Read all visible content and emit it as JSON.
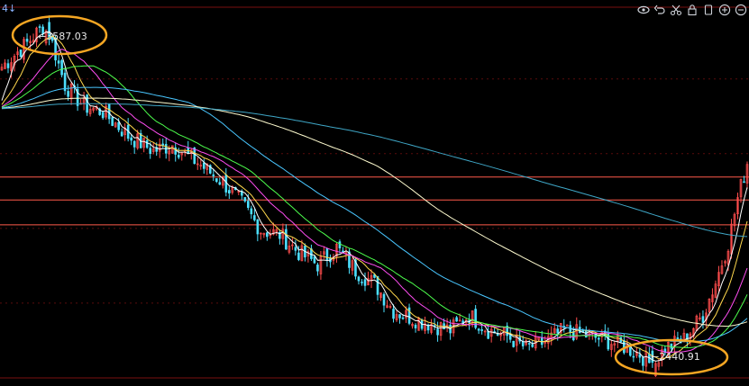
{
  "corner": {
    "text": "4↓"
  },
  "toolbar": {
    "icons": [
      "eye-icon",
      "undo-icon",
      "scissors-icon",
      "lock-icon",
      "copy-icon",
      "zoom-in-icon",
      "zoom-out-icon"
    ]
  },
  "annotations": {
    "high": {
      "prefix": "←",
      "value": "3587.03"
    },
    "low": {
      "prefix": "←",
      "value": "2440.91"
    }
  },
  "colors": {
    "background": "#000000",
    "up": "#ff4d4d",
    "down": "#4de0ff",
    "ma5": "#ffffff",
    "ma10": "#ffd84d",
    "ma20": "#ff4df2",
    "ma30": "#4dff4d",
    "ma60": "#49c6ff",
    "ma120": "#fffcd0",
    "ma250": "#3fa7c7",
    "hline": "#ff5a4a",
    "highlight": "#f5a623"
  },
  "chart_data": {
    "type": "candlestick",
    "xlabel": "",
    "ylabel": "",
    "ylim": [
      2400,
      3640
    ],
    "high": 3587.03,
    "low": 2440.91,
    "close_path": [
      [
        0,
        3440
      ],
      [
        8,
        3520
      ],
      [
        14,
        3587
      ],
      [
        20,
        3380
      ],
      [
        26,
        3310
      ],
      [
        32,
        3290
      ],
      [
        40,
        3210
      ],
      [
        48,
        3160
      ],
      [
        54,
        3180
      ],
      [
        62,
        3120
      ],
      [
        70,
        3055
      ],
      [
        76,
        2985
      ],
      [
        82,
        2895
      ],
      [
        88,
        2880
      ],
      [
        94,
        2820
      ],
      [
        100,
        2780
      ],
      [
        106,
        2835
      ],
      [
        112,
        2760
      ],
      [
        118,
        2715
      ],
      [
        124,
        2625
      ],
      [
        130,
        2600
      ],
      [
        136,
        2580
      ],
      [
        142,
        2560
      ],
      [
        148,
        2610
      ],
      [
        154,
        2560
      ],
      [
        160,
        2540
      ],
      [
        166,
        2500
      ],
      [
        172,
        2520
      ],
      [
        178,
        2560
      ],
      [
        184,
        2545
      ],
      [
        190,
        2530
      ],
      [
        196,
        2510
      ],
      [
        202,
        2480
      ],
      [
        206,
        2440
      ],
      [
        210,
        2500
      ],
      [
        216,
        2530
      ],
      [
        222,
        2610
      ],
      [
        226,
        2720
      ],
      [
        230,
        2850
      ],
      [
        233,
        3000
      ],
      [
        236,
        3120
      ]
    ],
    "horizontal_levels": [
      3072,
      2995,
      2912
    ],
    "moving_averages": [
      "MA5",
      "MA10",
      "MA20",
      "MA30",
      "MA60",
      "MA120",
      "MA250"
    ]
  }
}
